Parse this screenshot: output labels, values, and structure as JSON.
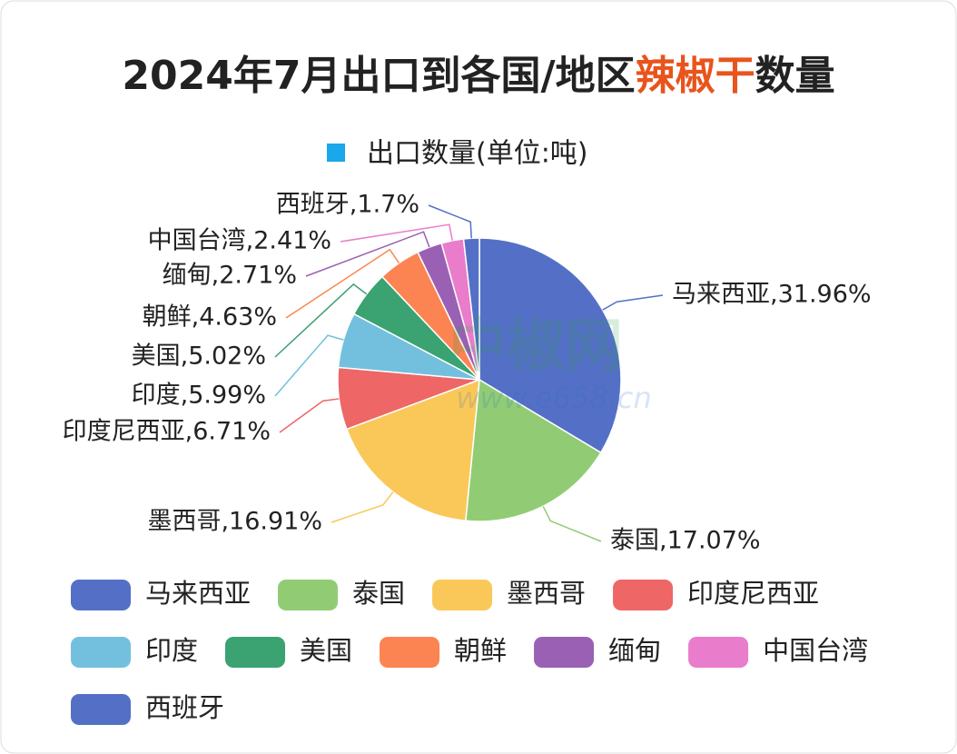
{
  "chart_data": {
    "type": "pie",
    "title": [
      "2024年7月出口到各国/地区",
      "辣椒干",
      "数量"
    ],
    "title_highlight_color": "#e8541c",
    "series_name": "出口数量(单位:吨)",
    "series_color": "#1aa7ec",
    "watermark": [
      "中椒网",
      "www.e658.cn"
    ],
    "categories": [
      "马来西亚",
      "泰国",
      "墨西哥",
      "印度尼西亚",
      "印度",
      "美国",
      "朝鲜",
      "缅甸",
      "中国台湾",
      "西班牙"
    ],
    "values": [
      31.96,
      17.07,
      16.91,
      6.71,
      5.99,
      5.02,
      4.63,
      2.71,
      2.41,
      1.7
    ],
    "value_labels": [
      "马来西亚,31.96%",
      "泰国,17.07%",
      "墨西哥,16.91%",
      "印度尼西亚,6.71%",
      "印度,5.99%",
      "美国,5.02%",
      "朝鲜,4.63%",
      "缅甸,2.71%",
      "中国台湾,2.41%",
      "西班牙,1.7%"
    ],
    "colors": [
      "#5470c6",
      "#91cc75",
      "#fac858",
      "#ee6666",
      "#73c0de",
      "#3ba272",
      "#fc8452",
      "#9a60b4",
      "#ea7ccc",
      "#5470c6"
    ]
  }
}
